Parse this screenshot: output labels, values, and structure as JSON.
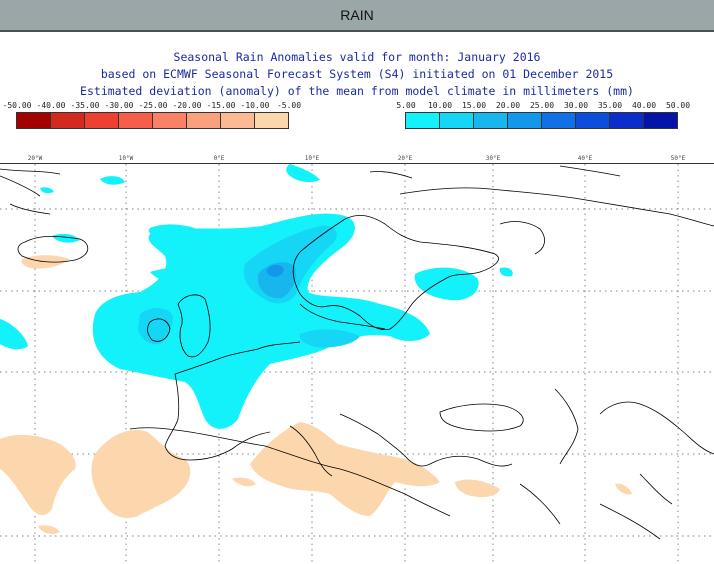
{
  "header": {
    "title": "RAIN"
  },
  "titles": {
    "line1": "Seasonal Rain Anomalies valid for month: January 2016",
    "line2": "based on ECMWF Seasonal Forecast System (S4) initiated on 01 December 2015",
    "line3": "Estimated deviation (anomaly) of the mean from model climate in millimeters (mm)"
  },
  "legend_negative": {
    "ticks": [
      "-50.00",
      "-40.00",
      "-35.00",
      "-30.00",
      "-25.00",
      "-20.00",
      "-15.00",
      "-10.00",
      "-5.00"
    ],
    "colors": [
      "#a30000",
      "#d22a1f",
      "#ee3f33",
      "#f65e4c",
      "#f98168",
      "#f9a07f",
      "#fbba94",
      "#fcd7ae"
    ]
  },
  "legend_positive": {
    "ticks": [
      "5.00",
      "10.00",
      "15.00",
      "20.00",
      "25.00",
      "30.00",
      "35.00",
      "40.00",
      "50.00"
    ],
    "colors": [
      "#13f1fa",
      "#15d6f4",
      "#17b7ee",
      "#1297ea",
      "#1071e6",
      "#0d4ddc",
      "#0b2dc9",
      "#0514a8"
    ]
  },
  "longitudes": [
    "20°W",
    "10°W",
    "0°E",
    "10°E",
    "20°E",
    "30°E",
    "40°E",
    "50°E"
  ],
  "map": {
    "land_color": "#ffffff",
    "coastline_color": "#000000",
    "graticule": "dotted"
  }
}
